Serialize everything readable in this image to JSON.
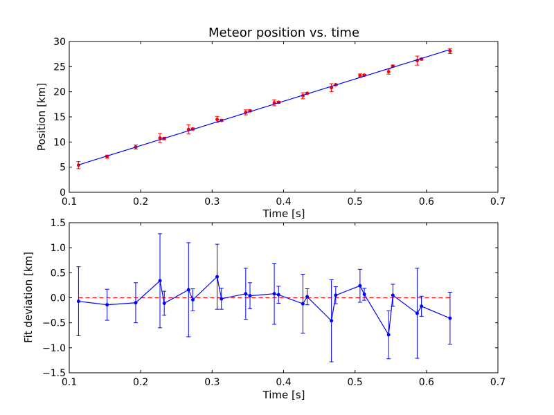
{
  "chart_data": [
    {
      "type": "scatter",
      "title": "Meteor position vs. time",
      "xlabel": "Time [s]",
      "ylabel": "Position [km]",
      "xlim": [
        0.1,
        0.7
      ],
      "ylim": [
        0,
        30
      ],
      "xticks": [
        "0.1",
        "0.2",
        "0.3",
        "0.4",
        "0.5",
        "0.6",
        "0.7"
      ],
      "yticks": [
        "0",
        "5",
        "10",
        "15",
        "20",
        "25",
        "30"
      ],
      "grid": false,
      "series": [
        {
          "marker": "point",
          "color": "#ff0000",
          "x": [
            0.113,
            0.153,
            0.193,
            0.227,
            0.233,
            0.267,
            0.273,
            0.307,
            0.313,
            0.347,
            0.353,
            0.387,
            0.393,
            0.427,
            0.433,
            0.467,
            0.473,
            0.507,
            0.513,
            0.547,
            0.553,
            0.587,
            0.593,
            0.633
          ],
          "y": [
            5.4,
            7.1,
            9.0,
            10.8,
            10.7,
            12.5,
            12.6,
            14.5,
            14.3,
            15.9,
            16.2,
            17.8,
            17.9,
            19.2,
            19.7,
            20.8,
            21.4,
            23.2,
            23.3,
            24.0,
            25.1,
            26.2,
            26.5,
            28.1
          ],
          "yerr": [
            0.7,
            0.3,
            0.4,
            0.9,
            0.25,
            0.9,
            0.2,
            0.6,
            0.2,
            0.5,
            0.2,
            0.6,
            0.2,
            0.6,
            0.15,
            0.8,
            0.15,
            0.35,
            0.15,
            0.5,
            0.2,
            0.9,
            0.2,
            0.5
          ]
        },
        {
          "marker": "line",
          "color": "#0000ff",
          "x": [
            0.113,
            0.633
          ],
          "y": [
            5.45,
            28.4
          ]
        }
      ]
    },
    {
      "type": "line",
      "title": "",
      "xlabel": "Time [s]",
      "ylabel": "Fit deviation [km]",
      "xlim": [
        0.1,
        0.7
      ],
      "ylim": [
        -1.5,
        1.5
      ],
      "xticks": [
        "0.1",
        "0.2",
        "0.3",
        "0.4",
        "0.5",
        "0.6",
        "0.7"
      ],
      "yticks": [
        "−1.5",
        "−1.0",
        "−0.5",
        "0.0",
        "0.5",
        "1.0",
        "1.5"
      ],
      "grid": false,
      "reference_line": {
        "y": 0,
        "style": "dashed",
        "color": "#ff0000"
      },
      "series": [
        {
          "color": "#0000ff",
          "x": [
            0.113,
            0.153,
            0.193,
            0.227,
            0.233,
            0.267,
            0.273,
            0.307,
            0.313,
            0.347,
            0.353,
            0.387,
            0.393,
            0.427,
            0.433,
            0.467,
            0.473,
            0.507,
            0.513,
            0.547,
            0.553,
            0.587,
            0.593,
            0.633
          ],
          "y": [
            -0.07,
            -0.14,
            -0.1,
            0.34,
            -0.11,
            0.16,
            -0.04,
            0.42,
            -0.02,
            0.08,
            0.04,
            0.08,
            0.06,
            -0.12,
            0.02,
            -0.46,
            0.05,
            0.24,
            0.07,
            -0.74,
            0.05,
            -0.31,
            -0.17,
            -0.41
          ],
          "yerr": [
            0.69,
            0.31,
            0.4,
            0.94,
            0.24,
            0.94,
            0.22,
            0.65,
            0.21,
            0.51,
            0.26,
            0.61,
            0.17,
            0.59,
            0.16,
            0.82,
            0.17,
            0.33,
            0.12,
            0.48,
            0.22,
            0.9,
            0.2,
            0.52
          ]
        }
      ]
    }
  ]
}
